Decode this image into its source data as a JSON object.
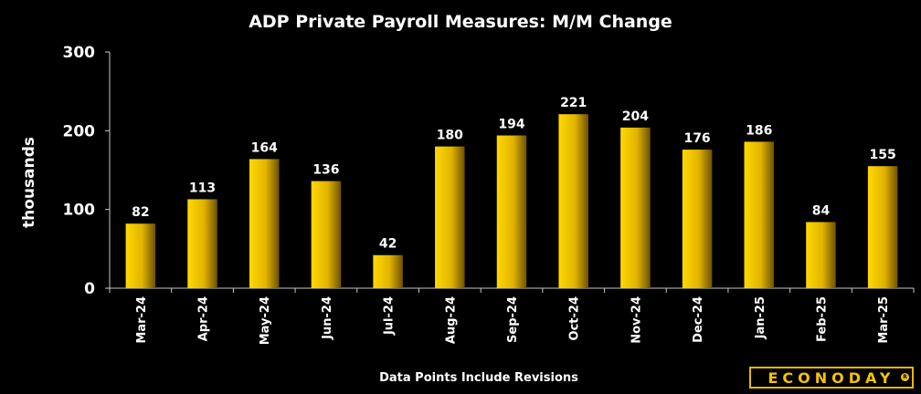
{
  "chart_data": {
    "type": "bar",
    "title": "ADP Private Payroll Measures: M/M Change",
    "ylabel": "thousands",
    "xlabel": "",
    "ylim": [
      0,
      300
    ],
    "yticks": [
      0,
      100,
      200,
      300
    ],
    "categories": [
      "Mar-24",
      "Apr-24",
      "May-24",
      "Jun-24",
      "Jul-24",
      "Aug-24",
      "Sep-24",
      "Oct-24",
      "Nov-24",
      "Dec-24",
      "Jan-25",
      "Feb-25",
      "Mar-25"
    ],
    "values": [
      82,
      113,
      164,
      136,
      42,
      180,
      194,
      221,
      204,
      176,
      186,
      84,
      155
    ],
    "data_labels": true,
    "grid": false,
    "footnote": "Data Points Include Revisions",
    "bar_color": "#f5c400",
    "bar_shadow_color": "#7a5e00",
    "background": "#000000"
  },
  "logo": {
    "text": "ECONODAY",
    "mark": "R"
  }
}
